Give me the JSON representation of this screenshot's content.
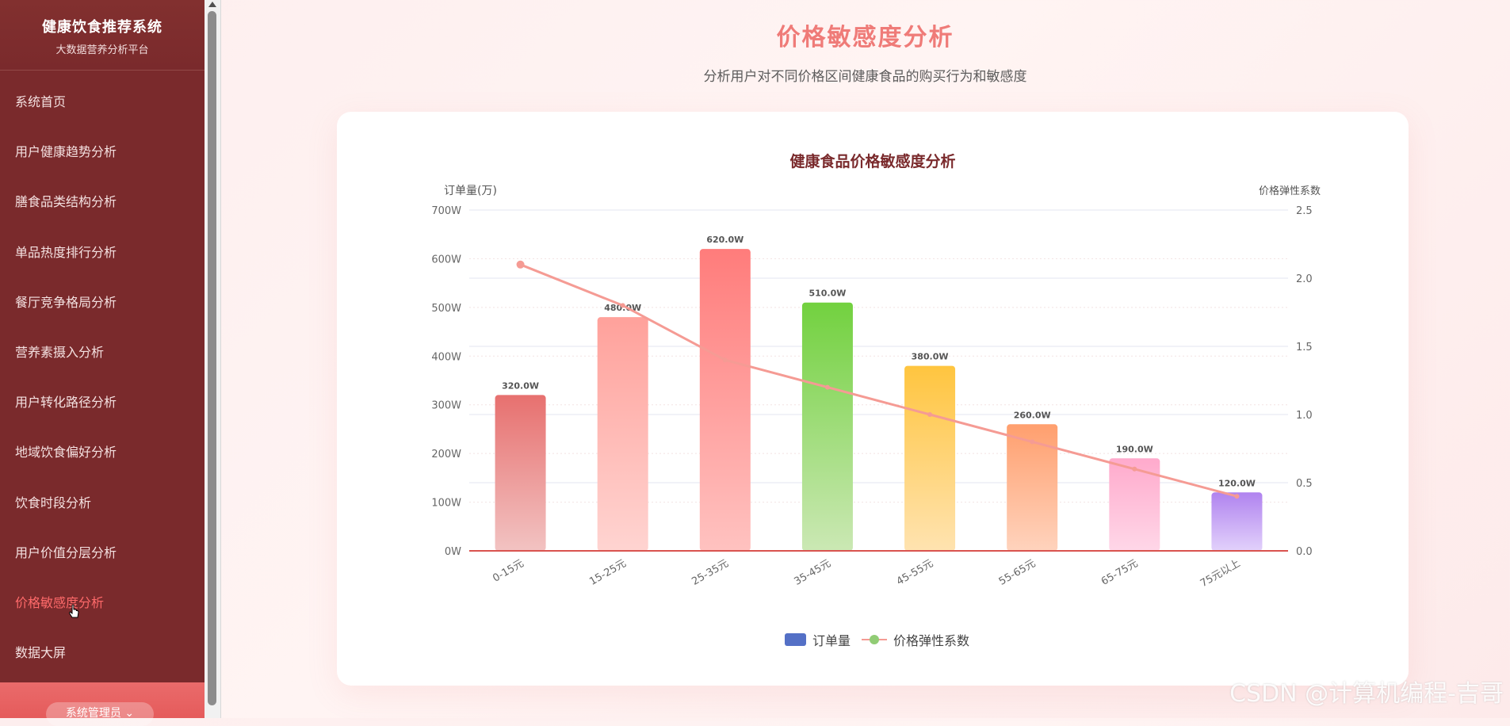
{
  "sidebar": {
    "brand_title": "健康饮食推荐系统",
    "brand_sub": "大数据营养分析平台",
    "items": [
      {
        "label": "系统首页"
      },
      {
        "label": "用户健康趋势分析"
      },
      {
        "label": "膳食品类结构分析"
      },
      {
        "label": "单品热度排行分析"
      },
      {
        "label": "餐厅竞争格局分析"
      },
      {
        "label": "营养素摄入分析"
      },
      {
        "label": "用户转化路径分析"
      },
      {
        "label": "地域饮食偏好分析"
      },
      {
        "label": "饮食时段分析"
      },
      {
        "label": "用户价值分层分析"
      },
      {
        "label": "价格敏感度分析"
      },
      {
        "label": "数据大屏"
      }
    ],
    "active_index": 10,
    "user_label": "系统管理员",
    "user_chevron_icon": "chevron-down-icon"
  },
  "page": {
    "title": "价格敏感度分析",
    "subtitle": "分析用户对不同价格区间健康食品的购买行为和敏感度"
  },
  "chart_data": {
    "type": "bar",
    "title": "健康食品价格敏感度分析",
    "categories": [
      "0-15元",
      "15-25元",
      "25-35元",
      "35-45元",
      "45-55元",
      "55-65元",
      "65-75元",
      "75元以上"
    ],
    "series": [
      {
        "name": "订单量",
        "type": "bar",
        "axis": "left",
        "values": [
          320,
          480,
          620,
          510,
          380,
          260,
          190,
          120
        ],
        "labels": [
          "320.0W",
          "480.0W",
          "620.0W",
          "510.0W",
          "380.0W",
          "260.0W",
          "190.0W",
          "120.0W"
        ],
        "bar_colors": [
          [
            "#e7706f",
            "#f2c3c2"
          ],
          [
            "#ffa19b",
            "#ffd4d1"
          ],
          [
            "#ff7c7b",
            "#ffc2c0"
          ],
          [
            "#72d13f",
            "#cbe8b4"
          ],
          [
            "#ffc53f",
            "#ffe3b0"
          ],
          [
            "#ff9f6e",
            "#ffd3bd"
          ],
          [
            "#ffaacc",
            "#ffd7e8"
          ],
          [
            "#b083ef",
            "#e2d1fb"
          ]
        ]
      },
      {
        "name": "价格弹性系数",
        "type": "line",
        "axis": "right",
        "values": [
          2.1,
          1.8,
          1.4,
          1.2,
          1.0,
          0.8,
          0.6,
          0.4
        ],
        "color": "#f59b94"
      }
    ],
    "y_left": {
      "label": "订单量(万)",
      "min": 0,
      "max": 700,
      "ticks": [
        "0W",
        "100W",
        "200W",
        "300W",
        "400W",
        "500W",
        "600W",
        "700W"
      ]
    },
    "y_right": {
      "label": "价格弹性系数",
      "min": 0,
      "max": 2.5,
      "ticks": [
        "0.0",
        "0.5",
        "1.0",
        "1.5",
        "2.0",
        "2.5"
      ]
    },
    "legend": [
      "订单量",
      "价格弹性系数"
    ],
    "legend_position": "bottom-center",
    "grid": true
  },
  "watermark": "CSDN @计算机编程-吉哥"
}
